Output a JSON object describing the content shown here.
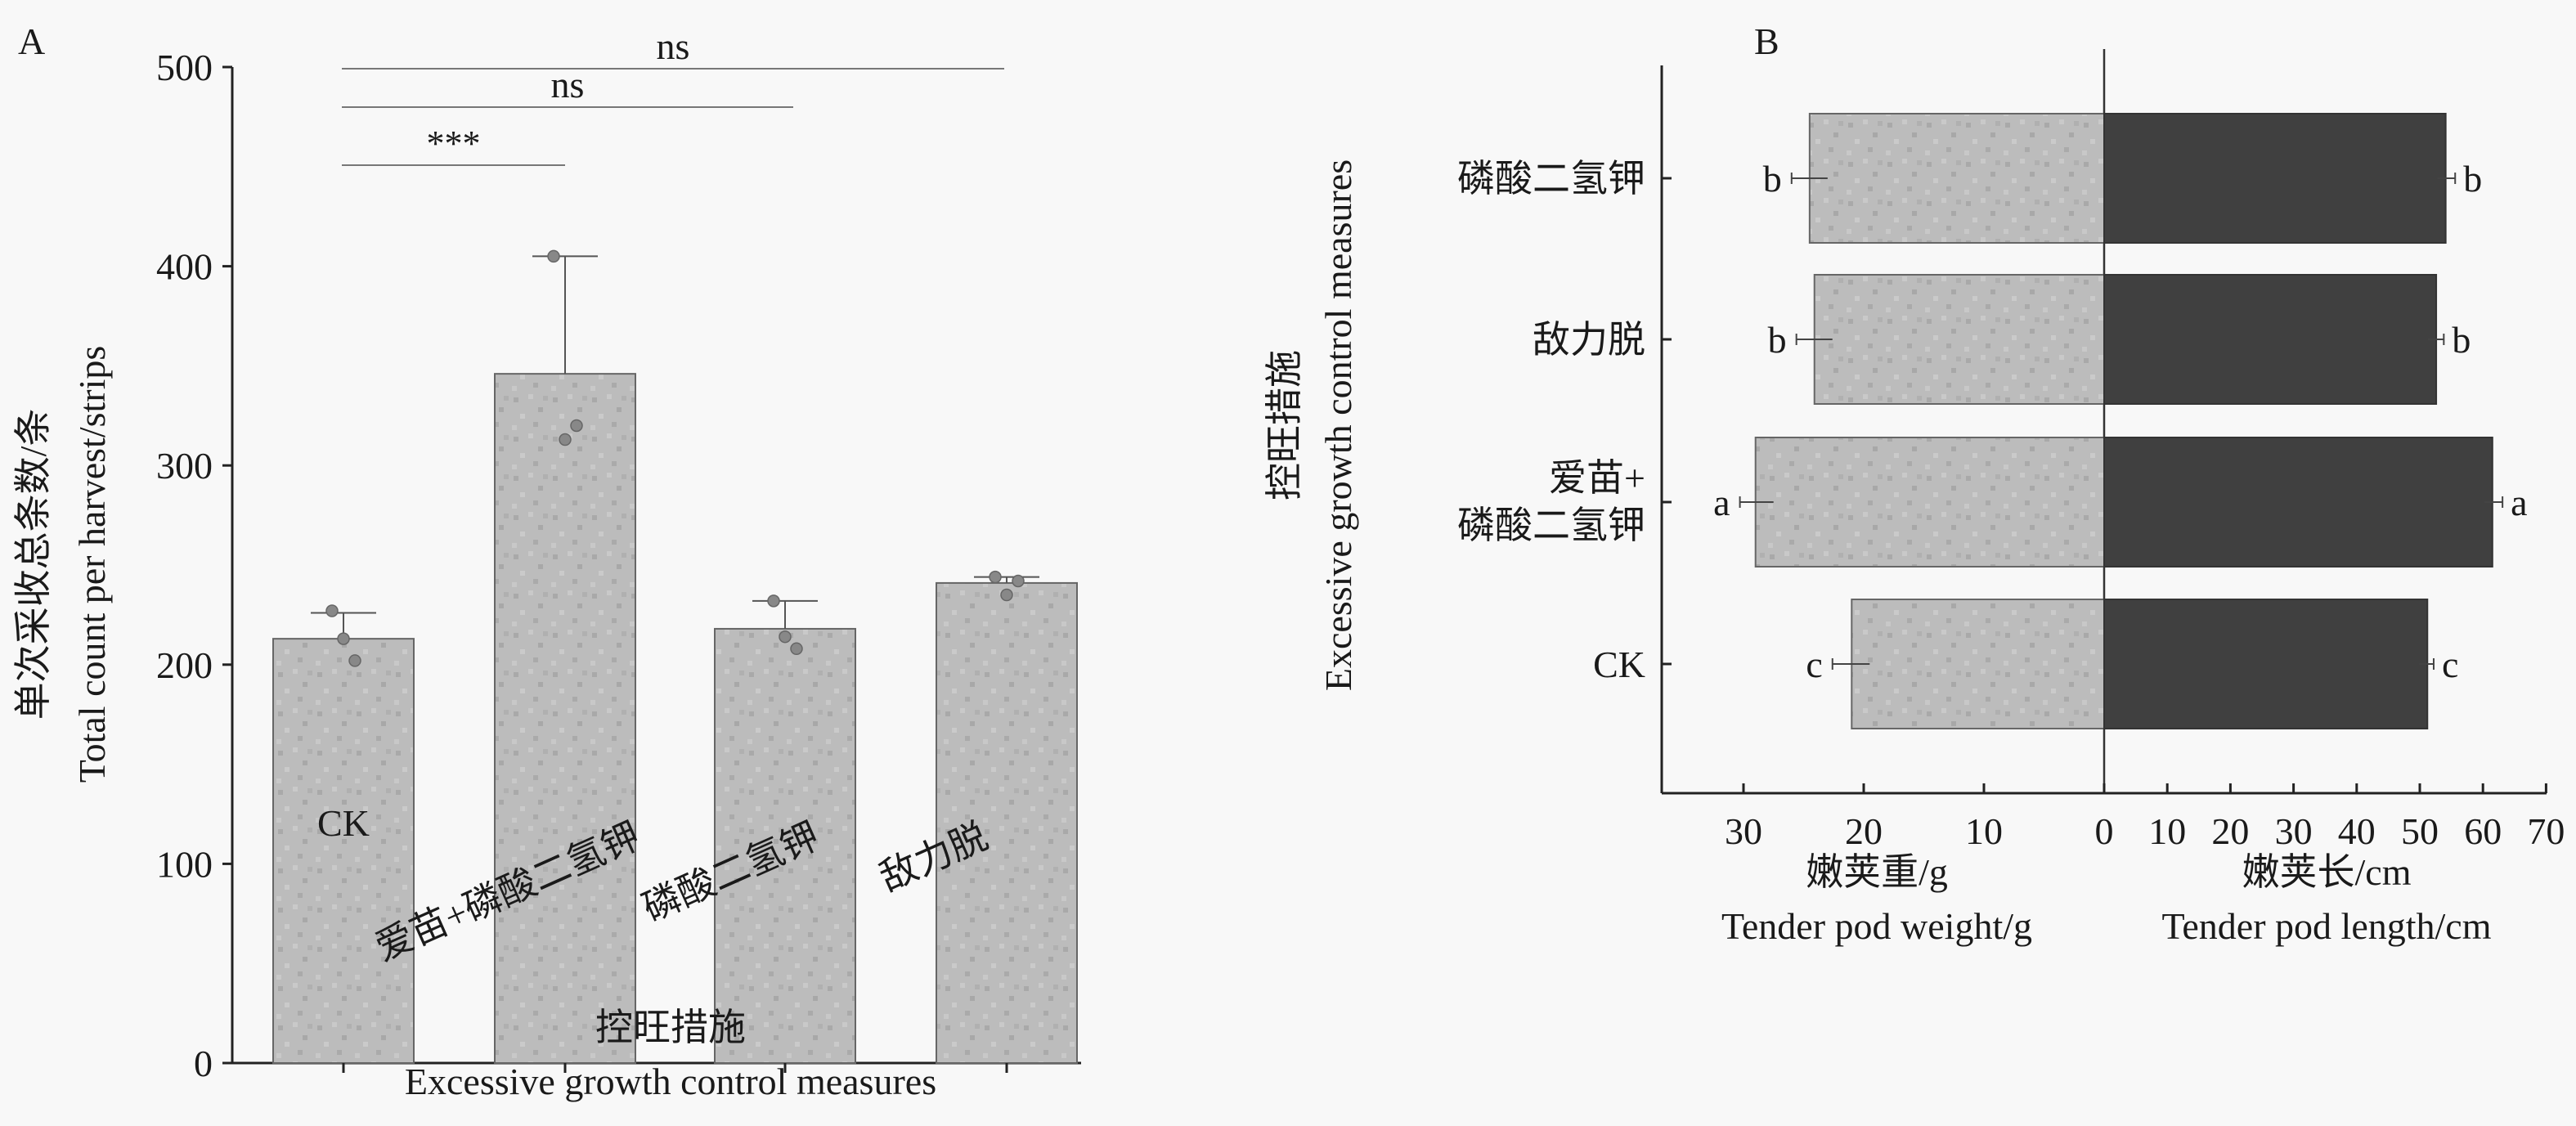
{
  "chart_data": [
    {
      "panel": "A",
      "type": "bar",
      "categories": [
        "CK",
        "爱苗+磷酸二氢钾",
        "磷酸二氢钾",
        "敌力脱"
      ],
      "values": [
        213,
        346,
        218,
        241
      ],
      "error_upper": [
        226,
        405,
        232,
        244
      ],
      "points": [
        [
          227,
          213,
          202
        ],
        [
          405,
          313,
          320
        ],
        [
          232,
          214,
          208
        ],
        [
          244,
          235,
          242
        ]
      ],
      "ylim": [
        0,
        500
      ],
      "yticks": [
        0,
        100,
        200,
        300,
        400,
        500
      ],
      "ylabel_cn": "单次采收总条数/条",
      "ylabel_en": "Total count per harvest/strips",
      "xlabel_cn": "控旺措施",
      "xlabel_en": "Excessive growth control measures",
      "significance": [
        {
          "from": 0,
          "to": 1,
          "label": "***"
        },
        {
          "from": 0,
          "to": 2,
          "label": "ns"
        },
        {
          "from": 0,
          "to": 3,
          "label": "ns"
        }
      ]
    },
    {
      "panel": "B",
      "type": "bar",
      "orientation": "horizontal",
      "categories": [
        "磷酸二氢钾",
        "敌力脱",
        "爱苗+\n磷酸二氢钾",
        "CK"
      ],
      "series": [
        {
          "name": "嫩荚重/g",
          "values": [
            24.5,
            24.1,
            29.0,
            21.0
          ],
          "error_upper": [
            26.0,
            25.6,
            30.3,
            22.6
          ],
          "letters": [
            "b",
            "b",
            "a",
            "c"
          ],
          "color": "#bdbdbd"
        },
        {
          "name": "嫩荚长/cm",
          "values": [
            54.1,
            52.6,
            61.5,
            51.2
          ],
          "error_upper": [
            55.6,
            53.8,
            63.1,
            52.2
          ],
          "letters": [
            "b",
            "b",
            "a",
            "c"
          ],
          "color": "#404040"
        }
      ],
      "left_ticks": [
        30,
        20,
        10,
        0
      ],
      "right_ticks": [
        10,
        20,
        30,
        40,
        50,
        60,
        70
      ],
      "left_xlabel_cn": "嫩荚重/g",
      "left_xlabel_en": "Tender pod weight/g",
      "right_xlabel_cn": "嫩荚长/cm",
      "right_xlabel_en": "Tender pod length/cm",
      "ylabel_cn": "控旺措施",
      "ylabel_en": "Excessive growth control measures"
    }
  ]
}
